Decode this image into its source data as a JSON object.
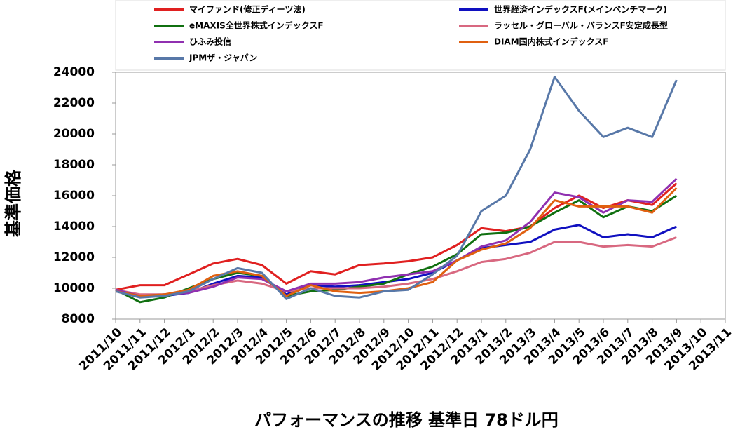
{
  "chart_data": {
    "type": "line",
    "x_label": "パフォーマンスの推移  基準日 78ドル円",
    "y_label": "基準価格",
    "categories": [
      "2011/10",
      "2011/11",
      "2011/12",
      "2012/1",
      "2012/2",
      "2012/3",
      "2012/4",
      "2012/5",
      "2012/6",
      "2012/7",
      "2012/8",
      "2012/9",
      "2012/10",
      "2012/11",
      "2012/12",
      "2013/1",
      "2013/2",
      "2013/3",
      "2013/4",
      "2013/5",
      "2013/6",
      "2013/7",
      "2013/8",
      "2013/9",
      "2013/10",
      "2013/11"
    ],
    "ylim": [
      8000,
      24000
    ],
    "yticks": [
      8000,
      10000,
      12000,
      14000,
      16000,
      18000,
      20000,
      22000,
      24000
    ],
    "grid": false,
    "series": [
      {
        "name": "マイファンド(修正ディーツ法)",
        "color": "#e02020",
        "values": [
          9900,
          10200,
          10200,
          10900,
          11600,
          11900,
          11500,
          10300,
          11100,
          10900,
          11500,
          11600,
          11750,
          12000,
          12800,
          13900,
          13700,
          14000,
          15200,
          16000,
          15200,
          15700,
          15400,
          16800,
          null,
          null
        ]
      },
      {
        "name": "世界経済インデックスF(メインベンチマーク)",
        "color": "#1010c0",
        "values": [
          9900,
          9500,
          9500,
          9700,
          10300,
          10800,
          10700,
          9600,
          10200,
          10100,
          10200,
          10400,
          10600,
          11000,
          11800,
          12600,
          12800,
          13000,
          13800,
          14100,
          13300,
          13500,
          13300,
          14000,
          null,
          null
        ]
      },
      {
        "name": "eMAXIS全世界株式インデックスF",
        "color": "#107010",
        "values": [
          9900,
          9100,
          9400,
          10000,
          10600,
          11000,
          10800,
          9500,
          9800,
          9900,
          10100,
          10300,
          10900,
          11400,
          12200,
          13500,
          13600,
          14000,
          14900,
          15700,
          14600,
          15300,
          15000,
          16000,
          null,
          null
        ]
      },
      {
        "name": "ラッセル・グローバル・バランスF安定成長型",
        "color": "#d86880",
        "values": [
          9900,
          9600,
          9600,
          9800,
          10200,
          10500,
          10300,
          9800,
          10000,
          10000,
          10000,
          10100,
          10300,
          10600,
          11100,
          11700,
          11900,
          12300,
          13000,
          13000,
          12700,
          12800,
          12700,
          13300,
          null,
          null
        ]
      },
      {
        "name": "ひふみ投信",
        "color": "#9030b0",
        "values": [
          9900,
          9500,
          9600,
          9700,
          10100,
          10700,
          10600,
          9800,
          10300,
          10300,
          10400,
          10700,
          10900,
          11100,
          11800,
          12700,
          13100,
          14300,
          16200,
          15900,
          14900,
          15700,
          15600,
          17100,
          null,
          null
        ]
      },
      {
        "name": "DIAM国内株式インデックスF",
        "color": "#e06010",
        "values": [
          9800,
          9500,
          9600,
          9900,
          10800,
          11100,
          10800,
          9500,
          10200,
          9800,
          9700,
          9800,
          10000,
          10400,
          11800,
          12500,
          12900,
          13900,
          15700,
          15300,
          15300,
          15300,
          14900,
          16500,
          null,
          null
        ]
      },
      {
        "name": "JPMザ・ジャパン",
        "color": "#5878a8",
        "values": [
          9800,
          9400,
          9500,
          9800,
          10600,
          11300,
          11000,
          9300,
          10000,
          9500,
          9400,
          9800,
          9900,
          10900,
          12100,
          15000,
          16000,
          19000,
          23700,
          21500,
          19800,
          20400,
          19800,
          23500,
          null,
          null
        ]
      }
    ]
  }
}
